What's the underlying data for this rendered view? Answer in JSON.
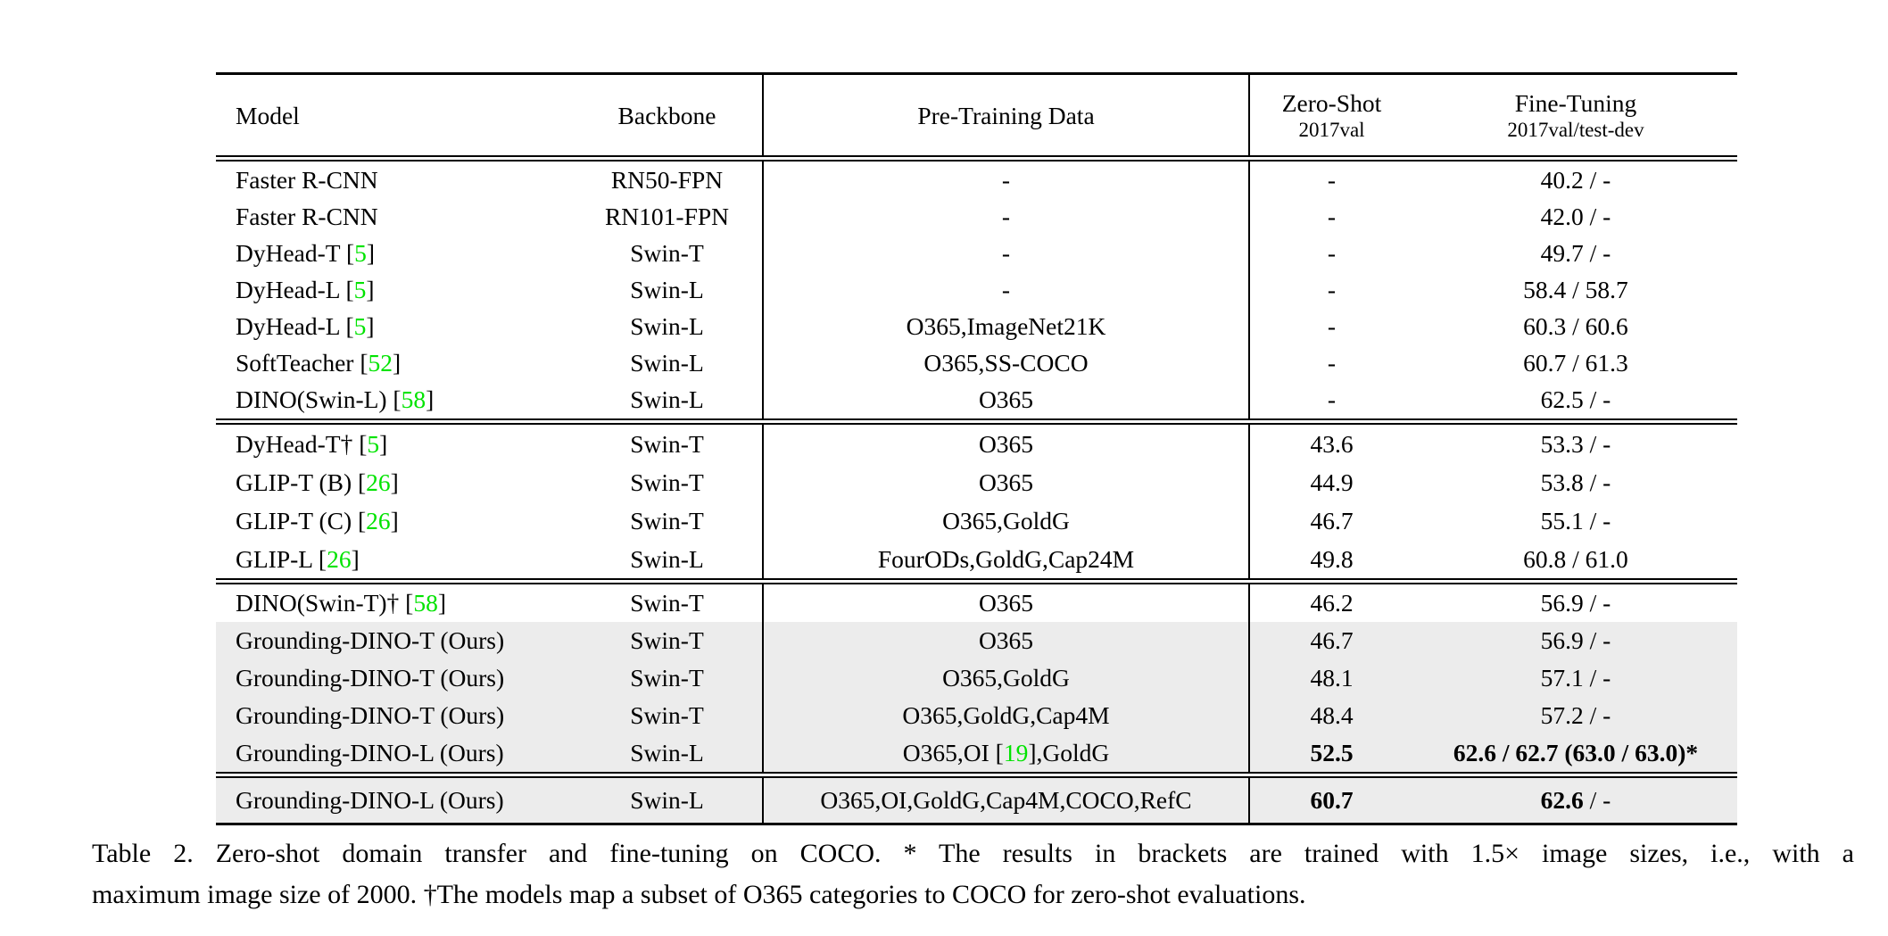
{
  "colors": {
    "citation_green": "#00e300",
    "row_highlight": "#ececec",
    "text": "#000000",
    "rule": "#000000"
  },
  "table": {
    "header": {
      "model": "Model",
      "backbone": "Backbone",
      "pretrain": "Pre-Training Data",
      "zeroshot_line1": "Zero-Shot",
      "zeroshot_line2": "2017val",
      "finetune_line1": "Fine-Tuning",
      "finetune_line2": "2017val/test-dev"
    },
    "sections": [
      {
        "rows": [
          {
            "model": "Faster R-CNN",
            "backbone": "RN50-FPN",
            "pretrain": "-",
            "zs": "-",
            "ft": "40.2 / -"
          },
          {
            "model": "Faster R-CNN",
            "backbone": "RN101-FPN",
            "pretrain": "-",
            "zs": "-",
            "ft": "42.0 / -"
          },
          {
            "model": "DyHead-T [5]",
            "backbone": "Swin-T",
            "pretrain": "-",
            "zs": "-",
            "ft": "49.7 / -"
          },
          {
            "model": "DyHead-L [5]",
            "backbone": "Swin-L",
            "pretrain": "-",
            "zs": "-",
            "ft": "58.4 / 58.7"
          },
          {
            "model": "DyHead-L [5]",
            "backbone": "Swin-L",
            "pretrain": "O365,ImageNet21K",
            "zs": "-",
            "ft": "60.3 / 60.6"
          },
          {
            "model": "SoftTeacher [52]",
            "backbone": "Swin-L",
            "pretrain": "O365,SS-COCO",
            "zs": "-",
            "ft": "60.7 / 61.3"
          },
          {
            "model": "DINO(Swin-L) [58]",
            "backbone": "Swin-L",
            "pretrain": "O365",
            "zs": "-",
            "ft": "62.5 / -"
          }
        ]
      },
      {
        "rows": [
          {
            "model": "DyHead-T† [5]",
            "backbone": "Swin-T",
            "pretrain": "O365",
            "zs": "43.6",
            "ft": "53.3 / -"
          },
          {
            "model": "GLIP-T (B) [26]",
            "backbone": "Swin-T",
            "pretrain": "O365",
            "zs": "44.9",
            "ft": "53.8 / -"
          },
          {
            "model": "GLIP-T (C) [26]",
            "backbone": "Swin-T",
            "pretrain": "O365,GoldG",
            "zs": "46.7",
            "ft": "55.1 / -"
          },
          {
            "model": "GLIP-L [26]",
            "backbone": "Swin-L",
            "pretrain": "FourODs,GoldG,Cap24M",
            "zs": "49.8",
            "ft": "60.8 / 61.0"
          }
        ]
      },
      {
        "rows": [
          {
            "model": "DINO(Swin-T)† [58]",
            "backbone": "Swin-T",
            "pretrain": "O365",
            "zs": "46.2",
            "ft": "56.9 / -"
          },
          {
            "model": "Grounding-DINO-T (Ours)",
            "backbone": "Swin-T",
            "pretrain": "O365",
            "zs": "46.7",
            "ft": "56.9 / -",
            "shaded": true
          },
          {
            "model": "Grounding-DINO-T (Ours)",
            "backbone": "Swin-T",
            "pretrain": "O365,GoldG",
            "zs": "48.1",
            "ft": "57.1 / -",
            "shaded": true
          },
          {
            "model": "Grounding-DINO-T (Ours)",
            "backbone": "Swin-T",
            "pretrain": "O365,GoldG,Cap4M",
            "zs": "48.4",
            "ft": "57.2 / -",
            "shaded": true
          },
          {
            "model": "Grounding-DINO-L (Ours)",
            "backbone": "Swin-L",
            "pretrain": "O365,OI [19],GoldG",
            "zs": [
              {
                "text": "52.5",
                "bold": true
              }
            ],
            "ft": [
              {
                "text": "62.6 / 62.7 (63.0 / 63.0)*",
                "bold": true
              }
            ],
            "shaded": true
          }
        ]
      },
      {
        "rows": [
          {
            "model": "Grounding-DINO-L (Ours)",
            "backbone": "Swin-L",
            "pretrain": "O365,OI,GoldG,Cap4M,COCO,RefC",
            "zs": [
              {
                "text": "60.7",
                "bold": true
              }
            ],
            "ft": [
              {
                "text": "62.6",
                "bold": true
              },
              {
                "text": " / -",
                "bold": false
              }
            ],
            "shaded": true
          }
        ]
      }
    ]
  },
  "caption": {
    "line1": "Table 2.  Zero-shot domain transfer and fine-tuning on COCO. * The results in brackets are trained with 1.5× image sizes, i.e., with a",
    "line2": "maximum image size of 2000. †The models map a subset of O365 categories to COCO for zero-shot evaluations."
  }
}
